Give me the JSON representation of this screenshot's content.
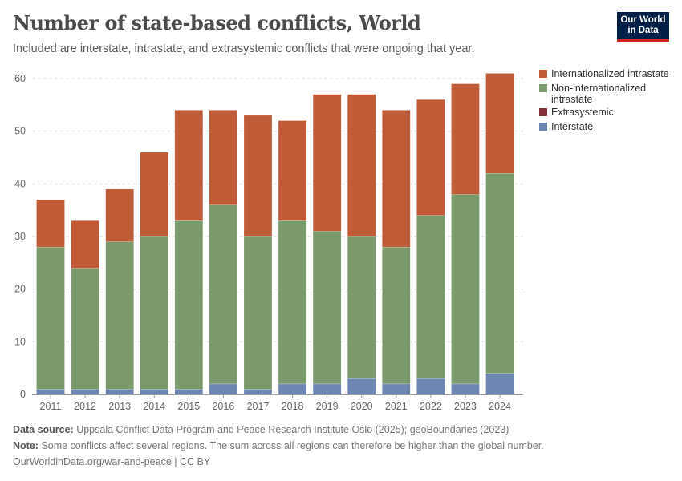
{
  "title": "Number of state-based conflicts, World",
  "subtitle": "Included are interstate, intrastate, and extrasystemic conflicts that were ongoing that year.",
  "logo": {
    "line1": "Our World",
    "line2": "in Data"
  },
  "chart_data": {
    "type": "bar",
    "stacked": true,
    "categories": [
      "2011",
      "2012",
      "2013",
      "2014",
      "2015",
      "2016",
      "2017",
      "2018",
      "2019",
      "2020",
      "2021",
      "2022",
      "2023",
      "2024"
    ],
    "ylim": [
      0,
      60
    ],
    "yticks": [
      0,
      10,
      20,
      30,
      40,
      50,
      60
    ],
    "grid": true,
    "legend_position": "right",
    "series": [
      {
        "name": "Interstate",
        "color": "#6d87b2",
        "values": [
          1,
          1,
          1,
          1,
          1,
          2,
          1,
          2,
          2,
          3,
          2,
          3,
          2,
          4
        ]
      },
      {
        "name": "Extrasystemic",
        "color": "#883039",
        "values": [
          0,
          0,
          0,
          0,
          0,
          0,
          0,
          0,
          0,
          0,
          0,
          0,
          0,
          0
        ]
      },
      {
        "name": "Non-internationalized intrastate",
        "color": "#7a9a6b",
        "values": [
          27,
          23,
          28,
          29,
          32,
          34,
          29,
          31,
          29,
          27,
          26,
          31,
          36,
          38
        ]
      },
      {
        "name": "Internationalized intrastate",
        "color": "#c05b38",
        "values": [
          9,
          9,
          10,
          16,
          21,
          18,
          23,
          19,
          26,
          27,
          26,
          22,
          21,
          19
        ]
      }
    ]
  },
  "legend": [
    {
      "label": "Internationalized intrastate",
      "color": "#c05b38"
    },
    {
      "label": "Non-internationalized intrastate",
      "color": "#7a9a6b"
    },
    {
      "label": "Extrasystemic",
      "color": "#883039"
    },
    {
      "label": "Interstate",
      "color": "#6d87b2"
    }
  ],
  "footer": {
    "source_label": "Data source:",
    "source": " Uppsala Conflict Data Program and Peace Research Institute Oslo (2025); geoBoundaries (2023)",
    "note_label": "Note:",
    "note": " Some conflicts affect several regions. The sum across all regions can therefore be higher than the global number.",
    "url": "OurWorldinData.org/war-and-peace | CC BY"
  }
}
